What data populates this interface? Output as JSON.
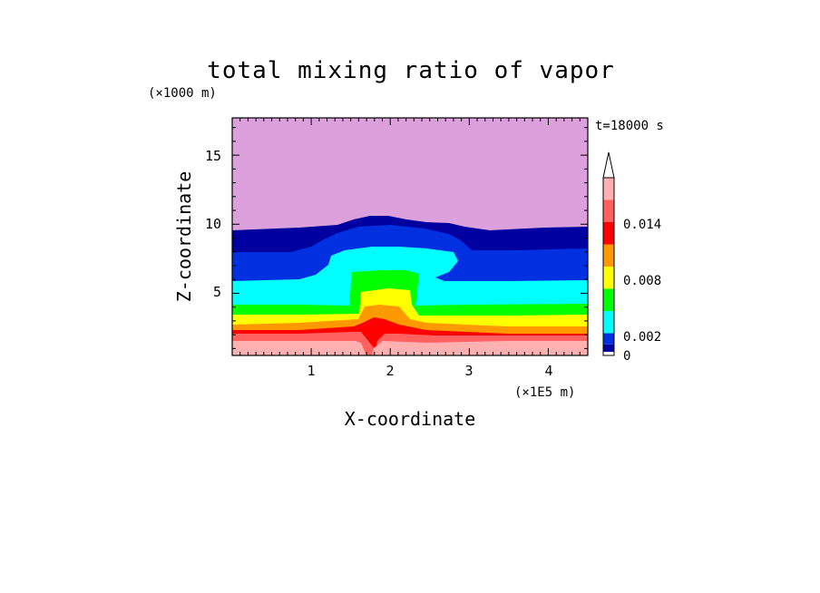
{
  "chart_data": {
    "type": "heatmap",
    "title": "total mixing ratio of vapor",
    "time_label": "t=18000 s",
    "xlabel": "X-coordinate",
    "ylabel": "Z-coordinate",
    "x_unit": "(×1E5 m)",
    "y_unit": "(×1000 m)",
    "xlim": [
      0,
      4.5
    ],
    "ylim": [
      0.5,
      17.7
    ],
    "xticks": [
      "1",
      "2",
      "3",
      "4"
    ],
    "yticks": [
      "5",
      "10",
      "15"
    ],
    "colorbar": {
      "levels": [
        0,
        0.001,
        0.002,
        0.004,
        0.006,
        0.008,
        0.01,
        0.012,
        0.014,
        0.016
      ],
      "tick_labels": [
        "0",
        "0.002",
        "0.008",
        "0.014"
      ],
      "tick_values": [
        0,
        0.002,
        0.008,
        0.014
      ],
      "colors": [
        "#ffffff",
        "#0000a0",
        "#0030e0",
        "#00ffff",
        "#00ff00",
        "#ffff00",
        "#ff9900",
        "#ff0000",
        "#ff6060",
        "#ffb0b0"
      ],
      "top_color": "#dca0dc",
      "extends_max": true
    },
    "bands": [
      {
        "name": "upper",
        "color": "#dca0dc"
      },
      {
        "name": "0-0.001",
        "color": "#0000a0"
      },
      {
        "name": "0.001-0.002",
        "color": "#0030e0"
      },
      {
        "name": "0.002-0.004",
        "color": "#00ffff"
      },
      {
        "name": "0.004-0.006",
        "color": "#00ff00"
      },
      {
        "name": "0.006-0.008",
        "color": "#ffff00"
      },
      {
        "name": "0.008-0.010",
        "color": "#ff9900"
      },
      {
        "name": "0.010-0.012",
        "color": "#ff0000"
      },
      {
        "name": "0.012-0.014",
        "color": "#ff6060"
      },
      {
        "name": ">0.014",
        "color": "#ffb0b0"
      }
    ]
  }
}
